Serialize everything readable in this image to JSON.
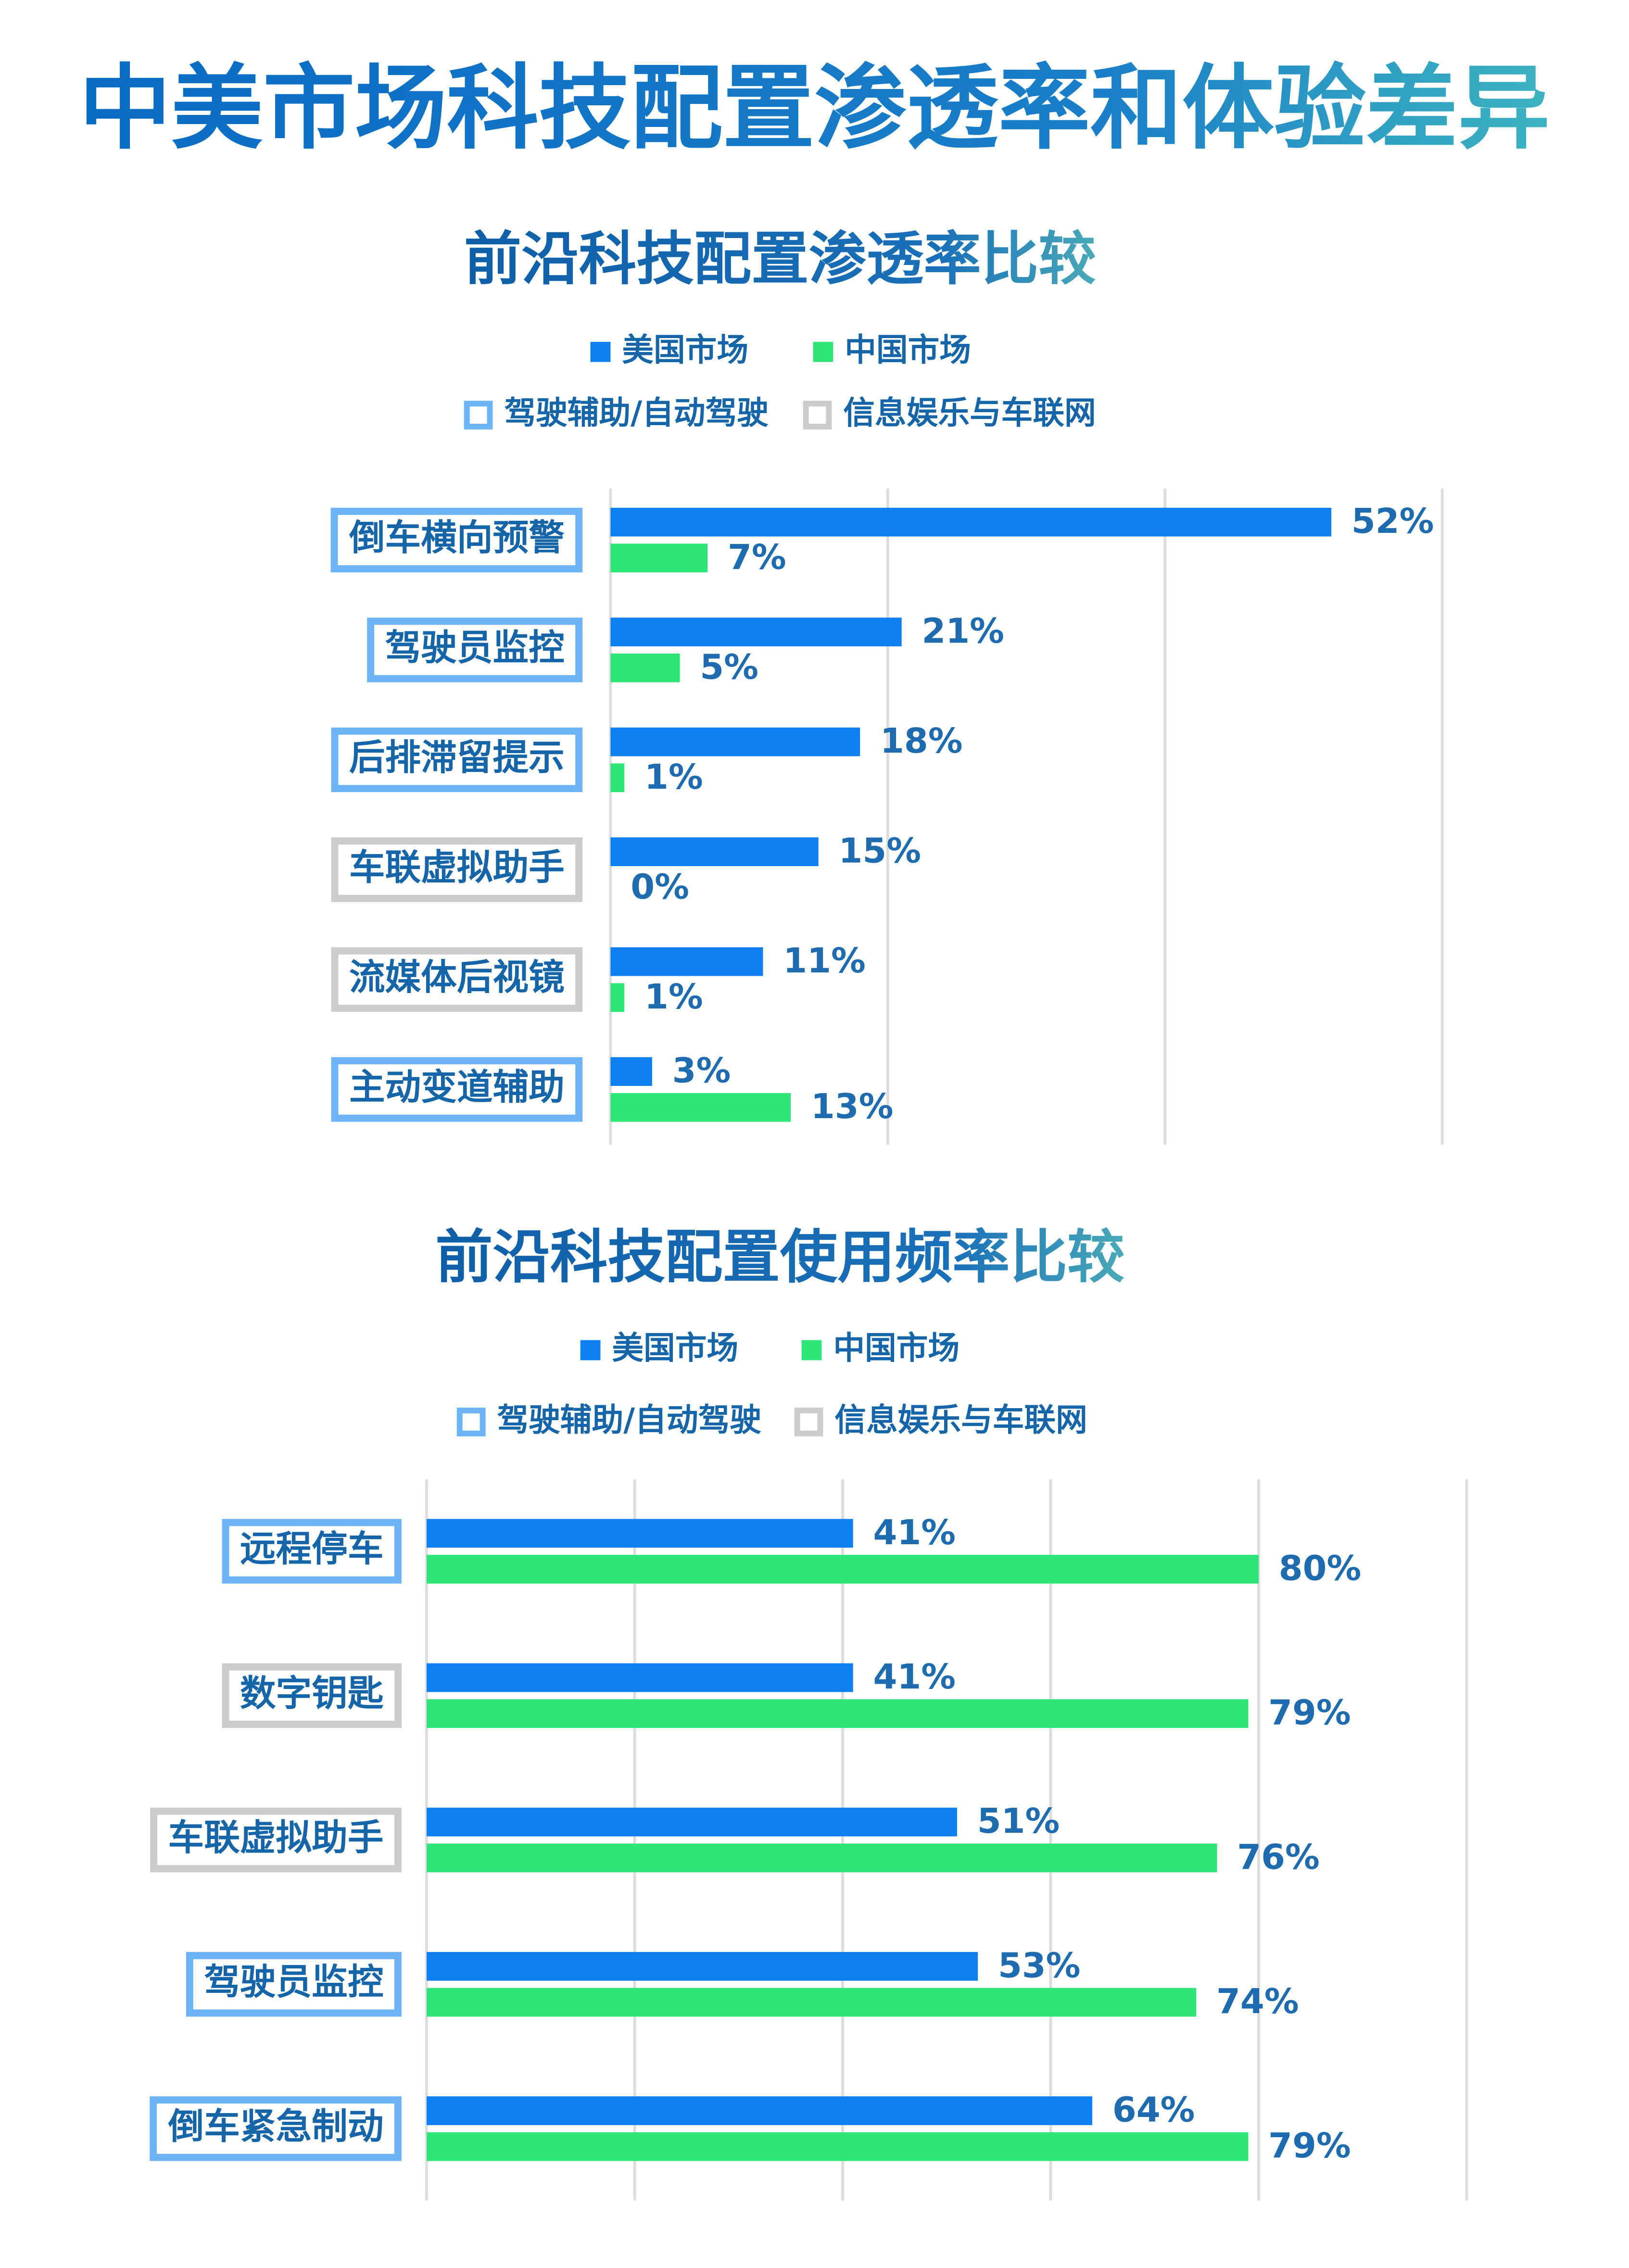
{
  "title": "中美市场科技配置渗透率和体验差异",
  "chart_data": [
    {
      "type": "bar",
      "orientation": "horizontal",
      "title": "前沿科技配置渗透率比较",
      "categories": [
        "倒车横向预警",
        "驾驶员监控",
        "后排滞留提示",
        "车联虚拟助手",
        "流媒体后视镜",
        "主动变道辅助"
      ],
      "category_colors": [
        "#6cb4f5",
        "#6cb4f5",
        "#6cb4f5",
        "#cccccc",
        "#cccccc",
        "#6cb4f5"
      ],
      "groups": [
        {
          "name": "驾驶辅助/自动驾驶",
          "color": "#6cb4f5"
        },
        {
          "name": "信息娱乐与车联网",
          "color": "#cccccc"
        }
      ],
      "series": [
        {
          "name": "美国市场",
          "color": "#0d7ff0",
          "values": [
            52,
            21,
            18,
            15,
            11,
            3
          ],
          "value_labels": [
            "52%",
            "21%",
            "18%",
            "15%",
            "11%",
            "3%"
          ]
        },
        {
          "name": "中国市场",
          "color": "#2ee677",
          "values": [
            7,
            5,
            1,
            0,
            1,
            13
          ],
          "value_labels": [
            "7%",
            "5%",
            "1%",
            "0%",
            "1%",
            "13%"
          ]
        }
      ],
      "xlim": [
        0,
        60
      ],
      "xticks": [
        0,
        20,
        40,
        60
      ],
      "grid": true
    },
    {
      "type": "bar",
      "orientation": "horizontal",
      "title": "前沿科技配置使用频率比较",
      "categories": [
        "远程停车",
        "数字钥匙",
        "车联虚拟助手",
        "驾驶员监控",
        "倒车紧急制动"
      ],
      "category_colors": [
        "#6cb4f5",
        "#cccccc",
        "#cccccc",
        "#6cb4f5",
        "#6cb4f5"
      ],
      "groups": [
        {
          "name": "驾驶辅助/自动驾驶",
          "color": "#6cb4f5"
        },
        {
          "name": "信息娱乐与车联网",
          "color": "#cccccc"
        }
      ],
      "series": [
        {
          "name": "美国市场",
          "color": "#0d7ff0",
          "values": [
            41,
            41,
            51,
            53,
            64
          ],
          "value_labels": [
            "41%",
            "41%",
            "51%",
            "53%",
            "64%"
          ]
        },
        {
          "name": "中国市场",
          "color": "#2ee677",
          "values": [
            80,
            79,
            76,
            74,
            79
          ],
          "value_labels": [
            "80%",
            "79%",
            "76%",
            "74%",
            "79%"
          ]
        }
      ],
      "xlim": [
        0,
        100
      ],
      "xticks": [
        0,
        20,
        40,
        60,
        80,
        100
      ],
      "grid": true
    }
  ]
}
